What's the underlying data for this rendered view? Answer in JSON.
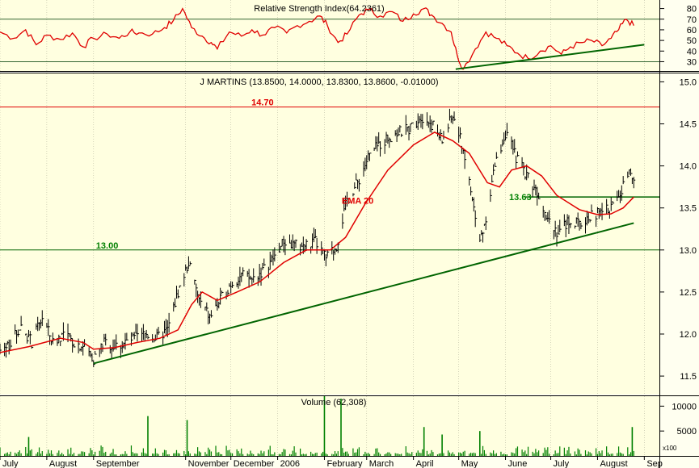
{
  "chart_data": {
    "type": "line",
    "colors": {
      "panel_bg": "#ffffe0",
      "axis_bg": "#fffff0",
      "price": "#000000",
      "ema": "#e00000",
      "rsi": "#e00000",
      "trendline": "#006400",
      "resistance": "#e00000",
      "support": "#006400",
      "volume": "#008000"
    },
    "rsi": {
      "title": "Relative Strength Index(64.2361)",
      "ylim": [
        22,
        85
      ],
      "ticks": [
        "80",
        "70",
        "60",
        "50",
        "40",
        "30"
      ],
      "tick_values": [
        80,
        70,
        60,
        50,
        40,
        30
      ],
      "levels": [
        70,
        30
      ],
      "trendline": {
        "from": [
          "2006-04-29",
          23
        ],
        "to": [
          "2006-09-01",
          46
        ]
      },
      "values": [
        [
          "2005-07-01",
          58
        ],
        [
          "2005-07-10",
          52
        ],
        [
          "2005-07-18",
          60
        ],
        [
          "2005-07-25",
          46
        ],
        [
          "2005-08-01",
          55
        ],
        [
          "2005-08-10",
          51
        ],
        [
          "2005-08-18",
          57
        ],
        [
          "2005-08-25",
          44
        ],
        [
          "2005-09-01",
          52
        ],
        [
          "2005-09-10",
          56
        ],
        [
          "2005-09-18",
          52
        ],
        [
          "2005-09-25",
          58
        ],
        [
          "2005-10-01",
          57
        ],
        [
          "2005-10-10",
          56
        ],
        [
          "2005-10-18",
          62
        ],
        [
          "2005-10-24",
          69
        ],
        [
          "2005-10-30",
          80
        ],
        [
          "2005-11-05",
          62
        ],
        [
          "2005-11-12",
          54
        ],
        [
          "2005-11-18",
          48
        ],
        [
          "2005-11-22",
          42
        ],
        [
          "2005-11-30",
          58
        ],
        [
          "2005-12-08",
          54
        ],
        [
          "2005-12-15",
          60
        ],
        [
          "2005-12-22",
          55
        ],
        [
          "2005-12-30",
          62
        ],
        [
          "2006-01-07",
          57
        ],
        [
          "2006-01-14",
          64
        ],
        [
          "2006-01-22",
          68
        ],
        [
          "2006-01-29",
          73
        ],
        [
          "2006-02-03",
          64
        ],
        [
          "2006-02-10",
          48
        ],
        [
          "2006-02-16",
          56
        ],
        [
          "2006-02-24",
          74
        ],
        [
          "2006-03-02",
          79
        ],
        [
          "2006-03-10",
          73
        ],
        [
          "2006-03-18",
          77
        ],
        [
          "2006-03-25",
          68
        ],
        [
          "2006-04-01",
          75
        ],
        [
          "2006-04-08",
          80
        ],
        [
          "2006-04-13",
          74
        ],
        [
          "2006-04-20",
          66
        ],
        [
          "2006-04-26",
          58
        ],
        [
          "2006-04-30",
          36
        ],
        [
          "2006-05-04",
          23
        ],
        [
          "2006-05-12",
          42
        ],
        [
          "2006-05-19",
          58
        ],
        [
          "2006-05-26",
          52
        ],
        [
          "2006-06-02",
          45
        ],
        [
          "2006-06-09",
          38
        ],
        [
          "2006-06-16",
          33
        ],
        [
          "2006-06-24",
          40
        ],
        [
          "2006-07-01",
          45
        ],
        [
          "2006-07-08",
          37
        ],
        [
          "2006-07-14",
          44
        ],
        [
          "2006-07-22",
          48
        ],
        [
          "2006-07-28",
          50
        ],
        [
          "2006-08-04",
          45
        ],
        [
          "2006-08-10",
          52
        ],
        [
          "2006-08-15",
          60
        ],
        [
          "2006-08-20",
          70
        ],
        [
          "2006-08-25",
          64
        ]
      ]
    },
    "price": {
      "title": "J MARTINS (13.8500, 14.0000, 13.8300, 13.8600, -0.01000)",
      "ylim": [
        11.28,
        15.1
      ],
      "ticks": [
        "15.0",
        "14.5",
        "14.0",
        "13.5",
        "13.0",
        "12.5",
        "12.0",
        "11.5"
      ],
      "tick_values": [
        15.0,
        14.5,
        14.0,
        13.5,
        13.0,
        12.5,
        12.0,
        11.5
      ],
      "resistance": {
        "value": 14.7,
        "label": "14.70"
      },
      "support": {
        "value": 13.0,
        "label": "13.00"
      },
      "neckline": {
        "value": 13.63,
        "label": "13.63",
        "from": "2006-06-14",
        "to": "2006-09-07"
      },
      "trendline": {
        "from": [
          "2005-09-01",
          11.65
        ],
        "to": [
          "2006-08-25",
          13.32
        ]
      },
      "ema_label": "EMA 20",
      "close": [
        [
          "2005-07-01",
          11.8
        ],
        [
          "2005-07-08",
          11.9
        ],
        [
          "2005-07-15",
          12.1
        ],
        [
          "2005-07-22",
          11.9
        ],
        [
          "2005-07-29",
          12.2
        ],
        [
          "2005-08-05",
          11.9
        ],
        [
          "2005-08-12",
          12.0
        ],
        [
          "2005-08-19",
          11.9
        ],
        [
          "2005-08-26",
          11.85
        ],
        [
          "2005-09-01",
          11.7
        ],
        [
          "2005-09-08",
          11.9
        ],
        [
          "2005-09-15",
          11.85
        ],
        [
          "2005-09-22",
          11.9
        ],
        [
          "2005-09-29",
          11.95
        ],
        [
          "2005-10-06",
          12.0
        ],
        [
          "2005-10-13",
          11.95
        ],
        [
          "2005-10-20",
          12.05
        ],
        [
          "2005-10-27",
          12.5
        ],
        [
          "2005-11-03",
          12.85
        ],
        [
          "2005-11-10",
          12.4
        ],
        [
          "2005-11-17",
          12.2
        ],
        [
          "2005-11-24",
          12.4
        ],
        [
          "2005-12-01",
          12.6
        ],
        [
          "2005-12-08",
          12.7
        ],
        [
          "2005-12-15",
          12.65
        ],
        [
          "2005-12-22",
          12.75
        ],
        [
          "2005-12-29",
          12.9
        ],
        [
          "2006-01-05",
          13.1
        ],
        [
          "2006-01-12",
          13.05
        ],
        [
          "2006-01-19",
          13.05
        ],
        [
          "2006-01-26",
          13.1
        ],
        [
          "2006-02-02",
          12.9
        ],
        [
          "2006-02-09",
          13.05
        ],
        [
          "2006-02-16",
          13.6
        ],
        [
          "2006-02-23",
          13.8
        ],
        [
          "2006-03-02",
          14.1
        ],
        [
          "2006-03-09",
          14.25
        ],
        [
          "2006-03-16",
          14.35
        ],
        [
          "2006-03-23",
          14.4
        ],
        [
          "2006-03-30",
          14.45
        ],
        [
          "2006-04-06",
          14.6
        ],
        [
          "2006-04-13",
          14.5
        ],
        [
          "2006-04-20",
          14.3
        ],
        [
          "2006-04-27",
          14.6
        ],
        [
          "2006-05-04",
          14.2
        ],
        [
          "2006-05-11",
          13.5
        ],
        [
          "2006-05-14",
          13.05
        ],
        [
          "2006-05-18",
          13.3
        ],
        [
          "2006-05-25",
          14.0
        ],
        [
          "2006-06-01",
          14.4
        ],
        [
          "2006-06-08",
          14.1
        ],
        [
          "2006-06-15",
          13.9
        ],
        [
          "2006-06-22",
          13.7
        ],
        [
          "2006-06-29",
          13.4
        ],
        [
          "2006-07-06",
          13.2
        ],
        [
          "2006-07-13",
          13.35
        ],
        [
          "2006-07-20",
          13.3
        ],
        [
          "2006-07-27",
          13.4
        ],
        [
          "2006-08-03",
          13.45
        ],
        [
          "2006-08-10",
          13.5
        ],
        [
          "2006-08-17",
          13.7
        ],
        [
          "2006-08-22",
          14.0
        ],
        [
          "2006-08-25",
          13.86
        ]
      ],
      "ema20": [
        [
          "2005-07-01",
          11.78
        ],
        [
          "2005-07-20",
          11.85
        ],
        [
          "2005-08-10",
          11.95
        ],
        [
          "2005-08-25",
          11.9
        ],
        [
          "2005-09-01",
          11.82
        ],
        [
          "2005-09-15",
          11.84
        ],
        [
          "2005-09-30",
          11.9
        ],
        [
          "2005-10-15",
          11.95
        ],
        [
          "2005-10-27",
          12.05
        ],
        [
          "2005-11-05",
          12.35
        ],
        [
          "2005-11-12",
          12.5
        ],
        [
          "2005-11-22",
          12.4
        ],
        [
          "2005-12-05",
          12.5
        ],
        [
          "2005-12-20",
          12.62
        ],
        [
          "2006-01-05",
          12.85
        ],
        [
          "2006-01-20",
          13.0
        ],
        [
          "2006-02-05",
          13.0
        ],
        [
          "2006-02-15",
          13.15
        ],
        [
          "2006-02-28",
          13.55
        ],
        [
          "2006-03-15",
          13.95
        ],
        [
          "2006-04-01",
          14.25
        ],
        [
          "2006-04-15",
          14.4
        ],
        [
          "2006-04-27",
          14.3
        ],
        [
          "2006-05-08",
          14.15
        ],
        [
          "2006-05-20",
          13.8
        ],
        [
          "2006-05-28",
          13.75
        ],
        [
          "2006-06-05",
          13.95
        ],
        [
          "2006-06-15",
          14.0
        ],
        [
          "2006-06-25",
          13.88
        ],
        [
          "2006-07-05",
          13.65
        ],
        [
          "2006-07-20",
          13.48
        ],
        [
          "2006-08-01",
          13.42
        ],
        [
          "2006-08-10",
          13.43
        ],
        [
          "2006-08-18",
          13.5
        ],
        [
          "2006-08-25",
          13.63
        ]
      ]
    },
    "volume": {
      "title": "Volume (62,308)",
      "ylim": [
        0,
        12000
      ],
      "ticks": [
        "10000",
        "5000"
      ],
      "tick_values": [
        10000,
        5000
      ],
      "unit": "x100",
      "spikes": [
        [
          "2005-07-20",
          3800
        ],
        [
          "2005-10-07",
          8000
        ],
        [
          "2005-11-02",
          7200
        ],
        [
          "2006-02-01",
          12000
        ],
        [
          "2006-02-12",
          11500
        ],
        [
          "2006-04-08",
          5800
        ],
        [
          "2006-04-20",
          4300
        ],
        [
          "2006-05-15",
          5000
        ],
        [
          "2006-08-24",
          5800
        ]
      ]
    },
    "x_axis": {
      "range": [
        "2005-07-01",
        "2006-09-11"
      ],
      "labels": [
        {
          "text": "July",
          "date": "2005-07-01"
        },
        {
          "text": "August",
          "date": "2005-08-01"
        },
        {
          "text": "September",
          "date": "2005-09-01"
        },
        {
          "text": "November",
          "date": "2005-11-01"
        },
        {
          "text": "December",
          "date": "2005-12-01"
        },
        {
          "text": "2006",
          "date": "2006-01-01"
        },
        {
          "text": "February",
          "date": "2006-02-01"
        },
        {
          "text": "March",
          "date": "2006-03-01"
        },
        {
          "text": "April",
          "date": "2006-04-01"
        },
        {
          "text": "May",
          "date": "2006-05-01"
        },
        {
          "text": "June",
          "date": "2006-06-01"
        },
        {
          "text": "July",
          "date": "2006-07-01"
        },
        {
          "text": "August",
          "date": "2006-08-01"
        },
        {
          "text": "Sep",
          "date": "2006-09-01"
        }
      ]
    }
  }
}
